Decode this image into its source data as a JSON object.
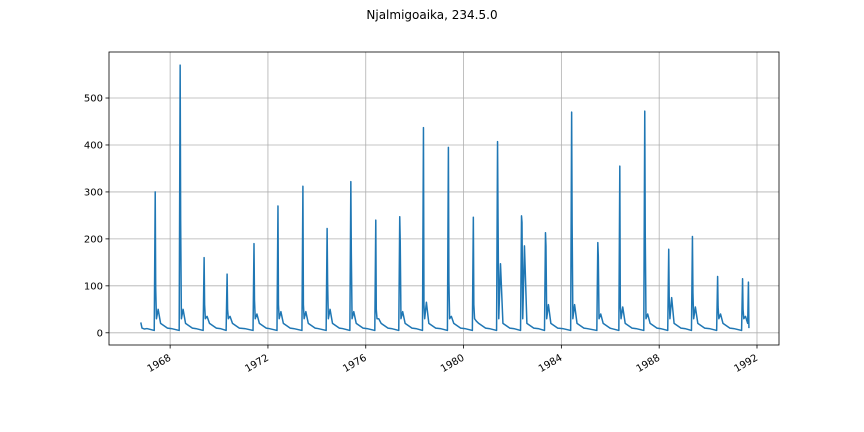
{
  "chart_data": {
    "type": "line",
    "title": "Njalmigoaika, 234.5.0",
    "color": "#1f77b4",
    "grid": true,
    "xlim": [
      1965.5,
      1992.9
    ],
    "xticks": [
      1968,
      1972,
      1976,
      1980,
      1984,
      1988,
      1992
    ],
    "ylim": [
      -26,
      598
    ],
    "yticks": [
      0,
      100,
      200,
      300,
      400,
      500
    ],
    "x": [
      1966.8,
      1966.85,
      1966.95,
      1967.05,
      1967.35,
      1967.39,
      1967.41,
      1967.44,
      1967.51,
      1967.61,
      1967.89,
      1968.05,
      1968.37,
      1968.41,
      1968.43,
      1968.46,
      1968.53,
      1968.63,
      1968.91,
      1969.05,
      1969.35,
      1969.39,
      1969.41,
      1969.44,
      1969.51,
      1969.61,
      1969.89,
      1970.05,
      1970.29,
      1970.33,
      1970.35,
      1970.38,
      1970.45,
      1970.55,
      1970.83,
      1971.05,
      1971.39,
      1971.43,
      1971.45,
      1971.48,
      1971.55,
      1971.65,
      1971.93,
      1972.05,
      1972.37,
      1972.41,
      1972.43,
      1972.46,
      1972.53,
      1972.63,
      1972.91,
      1973.05,
      1973.39,
      1973.43,
      1973.45,
      1973.48,
      1973.55,
      1973.65,
      1973.93,
      1974.05,
      1974.38,
      1974.42,
      1974.44,
      1974.47,
      1974.54,
      1974.64,
      1974.92,
      1975.05,
      1975.35,
      1975.39,
      1975.41,
      1975.44,
      1975.51,
      1975.61,
      1975.89,
      1976.05,
      1976.37,
      1976.41,
      1976.43,
      1976.46,
      1976.53,
      1976.63,
      1976.91,
      1977.05,
      1977.35,
      1977.39,
      1977.41,
      1977.44,
      1977.51,
      1977.61,
      1977.89,
      1978.05,
      1978.32,
      1978.36,
      1978.38,
      1978.41,
      1978.48,
      1978.58,
      1978.86,
      1979.05,
      1979.34,
      1979.38,
      1979.4,
      1979.43,
      1979.5,
      1979.6,
      1979.88,
      1980.05,
      1980.36,
      1980.4,
      1980.42,
      1980.45,
      1980.52,
      1980.62,
      1980.9,
      1981.05,
      1981.35,
      1981.39,
      1981.41,
      1981.44,
      1981.51,
      1981.61,
      1981.89,
      1982.05,
      1982.33,
      1982.37,
      1982.39,
      1982.42,
      1982.49,
      1982.59,
      1982.87,
      1983.05,
      1983.31,
      1983.35,
      1983.37,
      1983.4,
      1983.47,
      1983.57,
      1983.85,
      1984.05,
      1984.38,
      1984.42,
      1984.44,
      1984.47,
      1984.54,
      1984.64,
      1984.92,
      1985.05,
      1985.45,
      1985.49,
      1985.51,
      1985.54,
      1985.61,
      1985.71,
      1985.99,
      1986.05,
      1986.35,
      1986.39,
      1986.41,
      1986.44,
      1986.51,
      1986.61,
      1986.89,
      1987.05,
      1987.37,
      1987.41,
      1987.43,
      1987.46,
      1987.53,
      1987.63,
      1987.91,
      1988.05,
      1988.35,
      1988.39,
      1988.41,
      1988.44,
      1988.51,
      1988.61,
      1988.89,
      1989.05,
      1989.32,
      1989.36,
      1989.38,
      1989.41,
      1989.48,
      1989.58,
      1989.86,
      1990.05,
      1990.35,
      1990.39,
      1990.41,
      1990.44,
      1990.51,
      1990.61,
      1990.89,
      1991.05,
      1991.37,
      1991.41,
      1991.43,
      1991.46,
      1991.53,
      1991.62,
      1991.65,
      1991.67
    ],
    "values": [
      22,
      10,
      8,
      9,
      5,
      300,
      95,
      30,
      50,
      20,
      10,
      9,
      5,
      570,
      240,
      30,
      50,
      20,
      10,
      9,
      5,
      160,
      60,
      30,
      35,
      20,
      10,
      9,
      5,
      125,
      50,
      30,
      35,
      20,
      10,
      9,
      5,
      190,
      70,
      30,
      40,
      20,
      10,
      9,
      5,
      270,
      60,
      30,
      45,
      20,
      10,
      9,
      5,
      312,
      60,
      30,
      45,
      20,
      10,
      9,
      5,
      222,
      108,
      30,
      50,
      20,
      10,
      9,
      5,
      322,
      170,
      30,
      45,
      20,
      10,
      9,
      5,
      240,
      50,
      30,
      30,
      20,
      10,
      9,
      5,
      247,
      195,
      30,
      45,
      20,
      10,
      9,
      5,
      437,
      60,
      30,
      65,
      20,
      10,
      9,
      5,
      395,
      110,
      30,
      35,
      20,
      10,
      9,
      5,
      246,
      60,
      30,
      25,
      20,
      10,
      9,
      5,
      407,
      243,
      30,
      147,
      20,
      10,
      9,
      5,
      249,
      235,
      30,
      185,
      20,
      10,
      9,
      5,
      213,
      185,
      30,
      60,
      20,
      10,
      9,
      5,
      470,
      230,
      30,
      60,
      20,
      10,
      9,
      5,
      192,
      163,
      30,
      40,
      20,
      10,
      9,
      5,
      355,
      60,
      30,
      55,
      20,
      10,
      9,
      5,
      472,
      213,
      30,
      40,
      20,
      10,
      9,
      5,
      178,
      75,
      30,
      75,
      20,
      10,
      9,
      5,
      205,
      85,
      30,
      55,
      20,
      10,
      9,
      5,
      120,
      55,
      30,
      40,
      20,
      10,
      9,
      5,
      115,
      50,
      30,
      35,
      20,
      108,
      10
    ]
  }
}
